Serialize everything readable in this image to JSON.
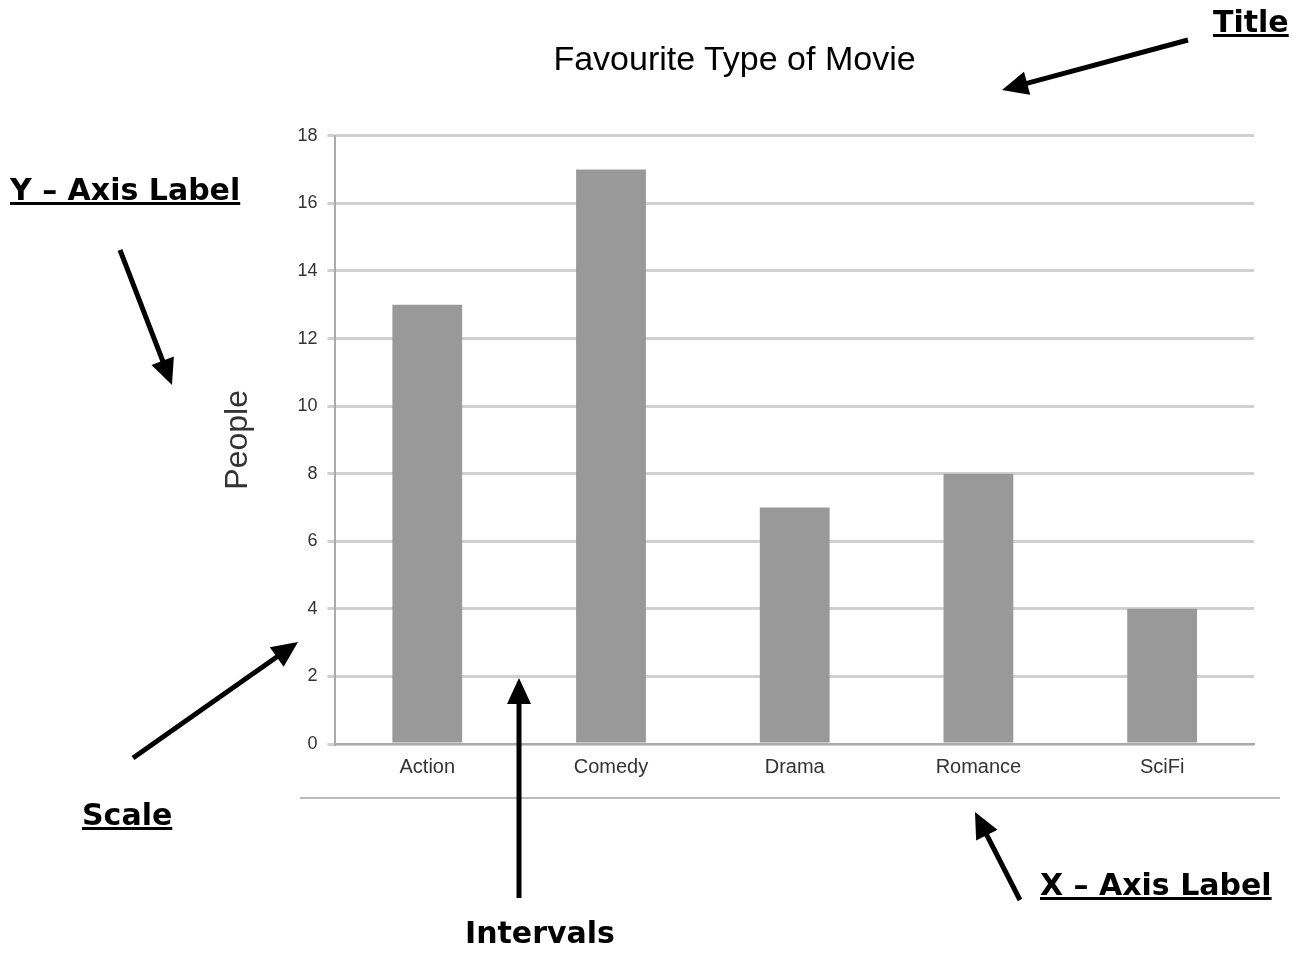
{
  "chart_data": {
    "type": "bar",
    "title": "Favourite Type of Movie",
    "ylabel": "People",
    "categories": [
      "Action",
      "Comedy",
      "Drama",
      "Romance",
      "SciFi"
    ],
    "values": [
      13,
      17,
      7,
      8,
      4
    ],
    "color": "#999999",
    "ylim": [
      0,
      18
    ],
    "yticks": [
      0,
      2,
      4,
      6,
      8,
      10,
      12,
      14,
      16,
      18
    ],
    "grid": "y",
    "legend": false,
    "annotations": [
      "Title",
      "Y – Axis Label",
      "Scale",
      "Intervals",
      "X – Axis Label"
    ]
  }
}
